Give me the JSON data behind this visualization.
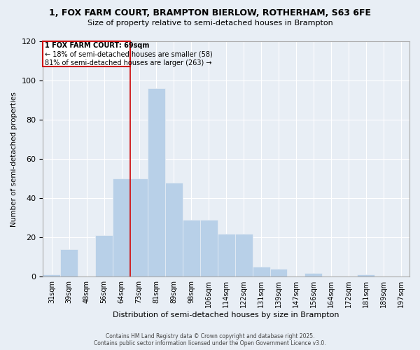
{
  "title_line1": "1, FOX FARM COURT, BRAMPTON BIERLOW, ROTHERHAM, S63 6FE",
  "title_line2": "Size of property relative to semi-detached houses in Brampton",
  "xlabel": "Distribution of semi-detached houses by size in Brampton",
  "ylabel": "Number of semi-detached properties",
  "categories": [
    "31sqm",
    "39sqm",
    "48sqm",
    "56sqm",
    "64sqm",
    "73sqm",
    "81sqm",
    "89sqm",
    "98sqm",
    "106sqm",
    "114sqm",
    "122sqm",
    "131sqm",
    "139sqm",
    "147sqm",
    "156sqm",
    "164sqm",
    "172sqm",
    "181sqm",
    "189sqm",
    "197sqm"
  ],
  "values": [
    1,
    14,
    0,
    21,
    50,
    50,
    96,
    48,
    29,
    29,
    22,
    22,
    5,
    4,
    0,
    2,
    0,
    0,
    1,
    0,
    0
  ],
  "highlight_index": 5,
  "highlight_label": "1 FOX FARM COURT: 69sqm",
  "pct_smaller": 18,
  "pct_larger": 81,
  "count_smaller": 58,
  "count_larger": 263,
  "bar_color": "#b8d0e8",
  "highlight_line_color": "#cc0000",
  "background_color": "#e8eef5",
  "footer1": "Contains HM Land Registry data © Crown copyright and database right 2025.",
  "footer2": "Contains public sector information licensed under the Open Government Licence v3.0.",
  "ylim": [
    0,
    120
  ],
  "yticks": [
    0,
    20,
    40,
    60,
    80,
    100,
    120
  ]
}
